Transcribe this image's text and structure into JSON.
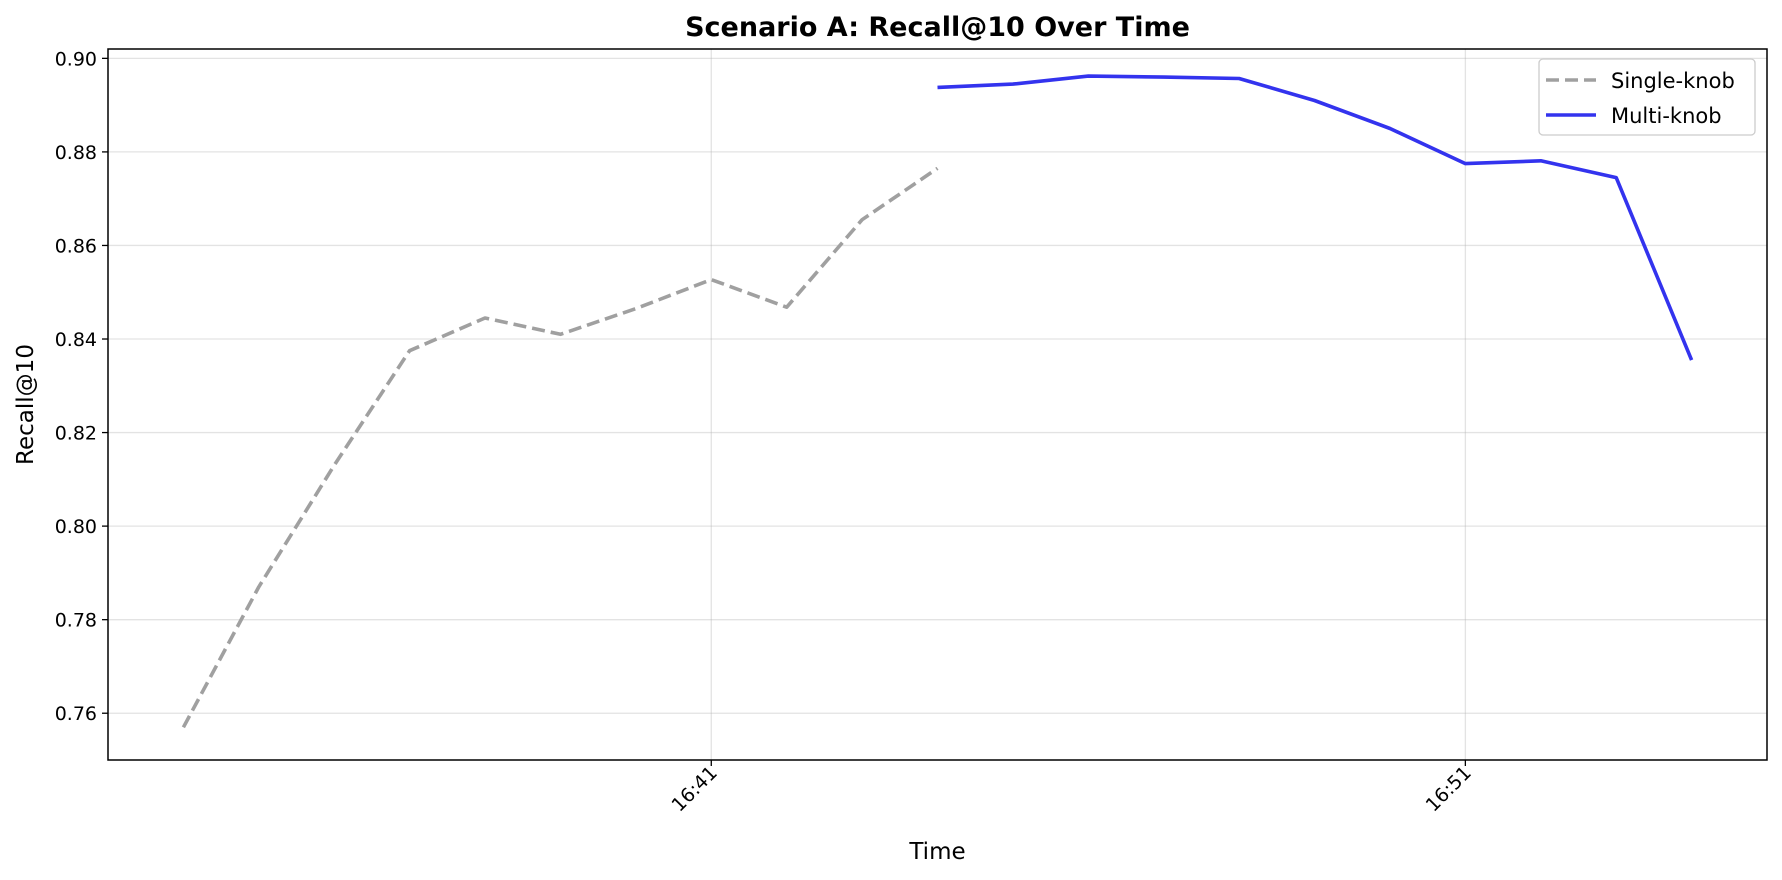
{
  "chart_data": {
    "type": "line",
    "title": "Scenario A: Recall@10 Over Time",
    "xlabel": "Time",
    "ylabel": "Recall@10",
    "ylim": [
      0.75,
      0.902
    ],
    "yticks": [
      0.76,
      0.78,
      0.8,
      0.82,
      0.84,
      0.86,
      0.88,
      0.9
    ],
    "ytick_labels": [
      "0.76",
      "0.78",
      "0.80",
      "0.82",
      "0.84",
      "0.86",
      "0.88",
      "0.90"
    ],
    "xlim": [
      "16:33:00",
      "16:55:00"
    ],
    "xticks": [
      "16:41:00",
      "16:51:00"
    ],
    "xtick_labels": [
      "16:41",
      "16:51"
    ],
    "grid": true,
    "legend_position": "top-right",
    "series": [
      {
        "name": "Single-knob",
        "color": "#a0a0a0",
        "style": "dashed",
        "points": [
          {
            "x": "16:34:00",
            "y": 0.757
          },
          {
            "x": "16:35:00",
            "y": 0.787
          },
          {
            "x": "16:36:00",
            "y": 0.813
          },
          {
            "x": "16:37:00",
            "y": 0.8375
          },
          {
            "x": "16:38:00",
            "y": 0.8445
          },
          {
            "x": "16:39:00",
            "y": 0.841
          },
          {
            "x": "16:40:00",
            "y": 0.8465
          },
          {
            "x": "16:41:00",
            "y": 0.8527
          },
          {
            "x": "16:42:00",
            "y": 0.8468
          },
          {
            "x": "16:43:00",
            "y": 0.8655
          },
          {
            "x": "16:44:00",
            "y": 0.8765
          }
        ]
      },
      {
        "name": "Multi-knob",
        "color": "#3333ee",
        "style": "solid",
        "points": [
          {
            "x": "16:44:00",
            "y": 0.8938
          },
          {
            "x": "16:45:00",
            "y": 0.8945
          },
          {
            "x": "16:46:00",
            "y": 0.8962
          },
          {
            "x": "16:47:00",
            "y": 0.896
          },
          {
            "x": "16:48:00",
            "y": 0.8957
          },
          {
            "x": "16:49:00",
            "y": 0.891
          },
          {
            "x": "16:50:00",
            "y": 0.885
          },
          {
            "x": "16:51:00",
            "y": 0.8775
          },
          {
            "x": "16:52:00",
            "y": 0.8781
          },
          {
            "x": "16:53:00",
            "y": 0.8745
          },
          {
            "x": "16:54:00",
            "y": 0.8355
          }
        ]
      }
    ]
  }
}
